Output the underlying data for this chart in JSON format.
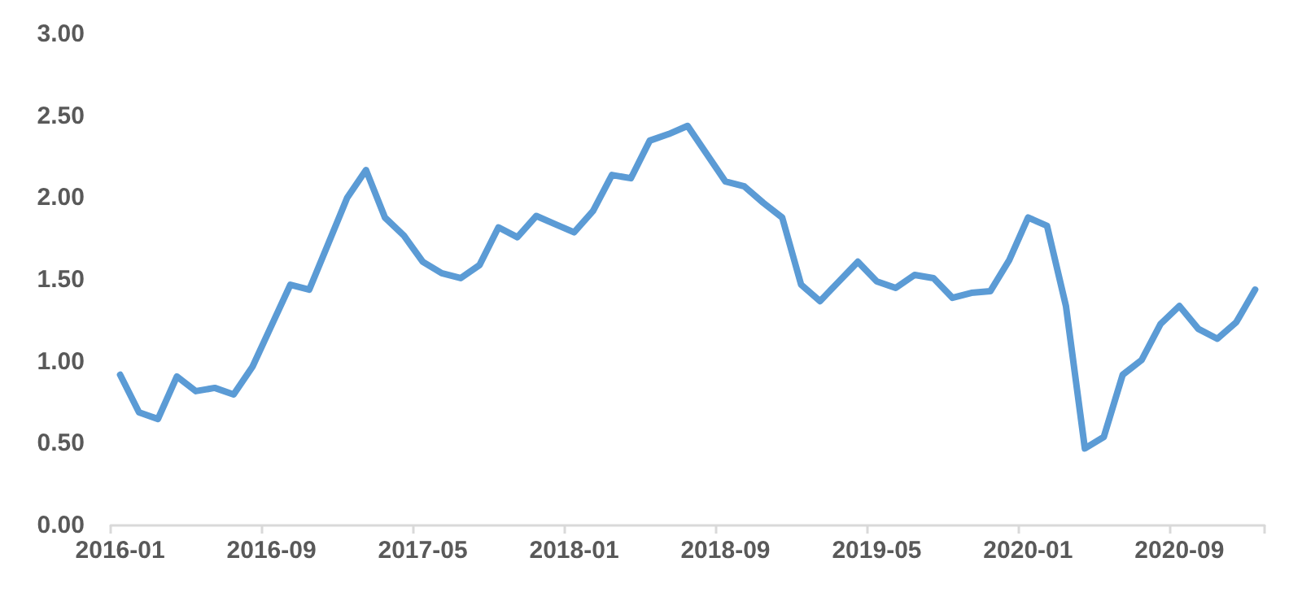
{
  "chart_data": {
    "type": "line",
    "categories": [
      "2016-01",
      null,
      null,
      null,
      null,
      null,
      null,
      null,
      "2016-09",
      null,
      null,
      null,
      null,
      null,
      null,
      null,
      "2017-05",
      null,
      null,
      null,
      null,
      null,
      null,
      null,
      "2018-01",
      null,
      null,
      null,
      null,
      null,
      null,
      null,
      "2018-09",
      null,
      null,
      null,
      null,
      null,
      null,
      null,
      "2019-05",
      null,
      null,
      null,
      null,
      null,
      null,
      null,
      "2020-01",
      null,
      null,
      null,
      null,
      null,
      null,
      null,
      "2020-09",
      null,
      null,
      null,
      null
    ],
    "series": [
      {
        "color": "#5b9bd5",
        "values": [
          0.92,
          0.69,
          0.65,
          0.91,
          0.82,
          0.84,
          0.8,
          0.97,
          1.22,
          1.47,
          1.44,
          1.72,
          2.0,
          2.17,
          1.88,
          1.77,
          1.61,
          1.54,
          1.51,
          1.59,
          1.82,
          1.76,
          1.89,
          1.84,
          1.79,
          1.92,
          2.14,
          2.12,
          2.35,
          2.39,
          2.44,
          2.27,
          2.1,
          2.07,
          1.97,
          1.88,
          1.47,
          1.37,
          1.49,
          1.61,
          1.49,
          1.45,
          1.53,
          1.51,
          1.39,
          1.42,
          1.43,
          1.62,
          1.88,
          1.83,
          1.34,
          0.47,
          0.54,
          0.92,
          1.01,
          1.23,
          1.34,
          1.2,
          1.14,
          1.24,
          1.44
        ]
      }
    ],
    "ylim": [
      0,
      3
    ],
    "yticks": [
      {
        "value": 0,
        "label": "0.00"
      },
      {
        "value": 0.5,
        "label": "0.50"
      },
      {
        "value": 1,
        "label": "1.00"
      },
      {
        "value": 1.5,
        "label": "1.50"
      },
      {
        "value": 2,
        "label": "2.00"
      },
      {
        "value": 2.5,
        "label": "2.50"
      },
      {
        "value": 3,
        "label": "3.00"
      }
    ],
    "grid": false,
    "marker": "none",
    "line_style": "solid"
  }
}
